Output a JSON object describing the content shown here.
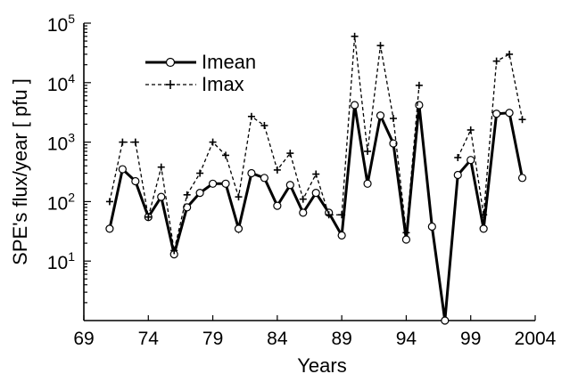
{
  "chart_data": {
    "type": "line",
    "xlabel": "Years",
    "ylabel": "SPE's flux/year  [ pfu ]",
    "xlim": [
      69,
      2004
    ],
    "ylim_log10": [
      0,
      5
    ],
    "y_scale": "log",
    "grid": false,
    "legend_position": "top-left",
    "x_ticks": [
      {
        "value": 1969,
        "label": "69"
      },
      {
        "value": 1974,
        "label": "74"
      },
      {
        "value": 1979,
        "label": "79"
      },
      {
        "value": 1984,
        "label": "84"
      },
      {
        "value": 1989,
        "label": "89"
      },
      {
        "value": 1994,
        "label": "94"
      },
      {
        "value": 1999,
        "label": "99"
      },
      {
        "value": 2004,
        "label": "2004"
      }
    ],
    "y_ticks": [
      {
        "exp": 1,
        "base": "10",
        "sup": "1"
      },
      {
        "exp": 2,
        "base": "10",
        "sup": "2"
      },
      {
        "exp": 3,
        "base": "10",
        "sup": "3"
      },
      {
        "exp": 4,
        "base": "10",
        "sup": "4"
      },
      {
        "exp": 5,
        "base": "10",
        "sup": "5"
      }
    ],
    "series": [
      {
        "name": "Imean",
        "style": "solid-circle",
        "x": [
          1971,
          1972,
          1973,
          1974,
          1975,
          1976,
          1977,
          1978,
          1979,
          1980,
          1981,
          1982,
          1983,
          1984,
          1985,
          1986,
          1987,
          1988,
          1989,
          1990,
          1991,
          1992,
          1993,
          1994,
          1995,
          1996,
          1997,
          1998,
          1999,
          2000,
          2001,
          2002,
          2003
        ],
        "values": [
          35,
          350,
          220,
          55,
          120,
          13,
          80,
          140,
          200,
          200,
          35,
          300,
          250,
          85,
          190,
          65,
          140,
          65,
          27,
          4200,
          200,
          2800,
          950,
          23,
          4200,
          38,
          1,
          280,
          500,
          35,
          3000,
          3100,
          250
        ]
      },
      {
        "name": "Imax",
        "style": "dashed-plus",
        "x": [
          1971,
          1972,
          1973,
          1974,
          1975,
          1976,
          1977,
          1978,
          1979,
          1980,
          1981,
          1982,
          1983,
          1984,
          1985,
          1986,
          1987,
          1988,
          1989,
          1990,
          1991,
          1992,
          1993,
          1994,
          1995,
          1996,
          1997,
          1998,
          1999,
          2000,
          2001,
          2002,
          2003
        ],
        "values": [
          100,
          1000,
          1000,
          55,
          380,
          15,
          130,
          300,
          1000,
          600,
          120,
          2700,
          1900,
          340,
          650,
          110,
          290,
          60,
          60,
          60000,
          700,
          42000,
          2500,
          30,
          9000,
          null,
          null,
          550,
          1600,
          60,
          23000,
          30000,
          2400
        ]
      }
    ]
  }
}
